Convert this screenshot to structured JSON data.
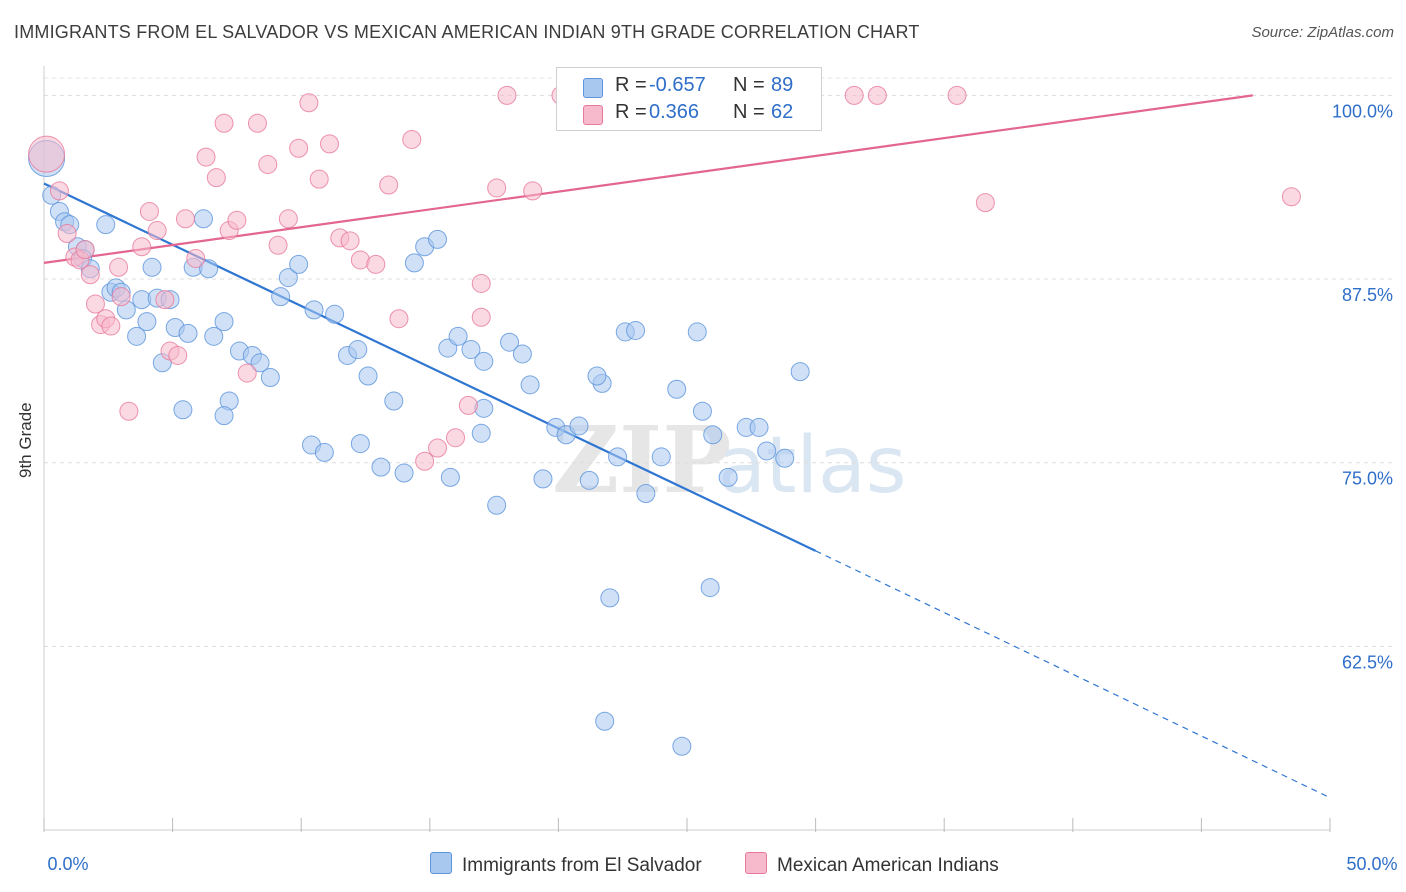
{
  "title": "IMMIGRANTS FROM EL SALVADOR VS MEXICAN AMERICAN INDIAN 9TH GRADE CORRELATION CHART",
  "source": "Source: ZipAtlas.com",
  "watermark": {
    "zip": "ZIP",
    "atlas": "atlas"
  },
  "legend": {
    "rows": [
      {
        "r_label": "R =",
        "r_value": "-0.657",
        "n_label": "N =",
        "n_value": "89",
        "color": "#a9c8f0"
      },
      {
        "r_label": "R =",
        "r_value": "0.366",
        "n_label": "N =",
        "n_value": "62",
        "color": "#f7b9cc"
      }
    ]
  },
  "bottom_legend": [
    {
      "label": "Immigrants from El Salvador",
      "color": "#a9c8f0"
    },
    {
      "label": "Mexican American Indians",
      "color": "#f7b9cc"
    }
  ],
  "chart_data": {
    "type": "scatter",
    "title": "IMMIGRANTS FROM EL SALVADOR VS MEXICAN AMERICAN INDIAN 9TH GRADE CORRELATION CHART",
    "xlabel": "",
    "ylabel": "9th Grade",
    "xlim": [
      0,
      50
    ],
    "ylim": [
      50,
      102
    ],
    "x_tick_labels": [
      "0.0%",
      "50.0%"
    ],
    "y_ticks": [
      62.5,
      75.0,
      87.5,
      100.0
    ],
    "y_tick_labels": [
      "62.5%",
      "75.0%",
      "87.5%",
      "100.0%"
    ],
    "grid": "horizontal dashed",
    "legend_position": "top-center",
    "series": [
      {
        "name": "Immigrants from El Salvador",
        "color": "#5b93dc",
        "fill": "#a9c8f0",
        "R": -0.657,
        "N": 89,
        "trend": {
          "x0": 0,
          "y0": 94.0,
          "x1": 30,
          "y1": 69.0,
          "dashed_to_x": 50,
          "dashed_to_y": 52.2
        },
        "points": [
          [
            0.1,
            95.7
          ],
          [
            0.3,
            93.2
          ],
          [
            0.6,
            92.1
          ],
          [
            0.8,
            91.4
          ],
          [
            1.0,
            91.2
          ],
          [
            1.3,
            89.7
          ],
          [
            1.6,
            89.5
          ],
          [
            1.5,
            88.9
          ],
          [
            1.8,
            88.2
          ],
          [
            2.4,
            91.2
          ],
          [
            2.6,
            86.6
          ],
          [
            2.8,
            86.9
          ],
          [
            3.0,
            86.6
          ],
          [
            3.2,
            85.4
          ],
          [
            3.6,
            83.6
          ],
          [
            3.8,
            86.1
          ],
          [
            4.0,
            84.6
          ],
          [
            4.2,
            88.3
          ],
          [
            4.4,
            86.2
          ],
          [
            4.6,
            81.8
          ],
          [
            4.9,
            86.1
          ],
          [
            5.1,
            84.2
          ],
          [
            5.6,
            83.8
          ],
          [
            5.8,
            88.3
          ],
          [
            6.2,
            91.6
          ],
          [
            6.4,
            88.2
          ],
          [
            6.6,
            83.6
          ],
          [
            7.0,
            84.6
          ],
          [
            7.2,
            79.2
          ],
          [
            7.6,
            82.6
          ],
          [
            8.1,
            82.3
          ],
          [
            8.4,
            81.8
          ],
          [
            8.8,
            80.8
          ],
          [
            9.2,
            86.3
          ],
          [
            9.5,
            87.6
          ],
          [
            9.9,
            88.5
          ],
          [
            10.4,
            76.2
          ],
          [
            10.9,
            75.7
          ],
          [
            11.3,
            85.1
          ],
          [
            11.8,
            82.3
          ],
          [
            12.2,
            82.7
          ],
          [
            12.6,
            80.9
          ],
          [
            13.1,
            74.7
          ],
          [
            13.6,
            79.2
          ],
          [
            14.0,
            74.3
          ],
          [
            14.4,
            88.6
          ],
          [
            14.8,
            89.7
          ],
          [
            15.3,
            90.2
          ],
          [
            15.7,
            82.8
          ],
          [
            16.1,
            83.6
          ],
          [
            16.6,
            82.7
          ],
          [
            17.1,
            78.7
          ],
          [
            17.6,
            72.1
          ],
          [
            18.1,
            83.2
          ],
          [
            18.6,
            82.4
          ],
          [
            18.9,
            80.3
          ],
          [
            19.4,
            73.9
          ],
          [
            19.9,
            77.4
          ],
          [
            20.3,
            76.9
          ],
          [
            20.8,
            77.5
          ],
          [
            21.2,
            73.8
          ],
          [
            21.7,
            80.4
          ],
          [
            22.3,
            75.4
          ],
          [
            22.6,
            83.9
          ],
          [
            23.0,
            84.0
          ],
          [
            23.4,
            72.9
          ],
          [
            24.0,
            75.4
          ],
          [
            24.6,
            80.0
          ],
          [
            25.4,
            83.9
          ],
          [
            26.0,
            76.9
          ],
          [
            26.6,
            74.0
          ],
          [
            27.3,
            77.4
          ],
          [
            27.8,
            77.4
          ],
          [
            28.1,
            75.8
          ],
          [
            28.8,
            75.3
          ],
          [
            29.4,
            81.2
          ],
          [
            17.0,
            77.0
          ],
          [
            15.8,
            74.0
          ],
          [
            12.3,
            76.3
          ],
          [
            10.5,
            85.4
          ],
          [
            7.0,
            78.2
          ],
          [
            5.4,
            78.6
          ],
          [
            22.0,
            65.8
          ],
          [
            25.9,
            66.5
          ],
          [
            21.8,
            57.4
          ],
          [
            24.8,
            55.7
          ],
          [
            17.1,
            81.9
          ],
          [
            21.5,
            80.9
          ],
          [
            25.6,
            78.5
          ]
        ]
      },
      {
        "name": "Mexican American Indians",
        "color": "#e7799b",
        "fill": "#f7b9cc",
        "R": 0.366,
        "N": 62,
        "trend": {
          "x0": 0,
          "y0": 88.6,
          "x1": 47,
          "y1": 100.0
        },
        "points": [
          [
            0.1,
            96.0
          ],
          [
            0.6,
            93.5
          ],
          [
            0.9,
            90.6
          ],
          [
            1.2,
            89.0
          ],
          [
            1.4,
            88.8
          ],
          [
            1.6,
            89.5
          ],
          [
            2.0,
            85.8
          ],
          [
            2.2,
            84.4
          ],
          [
            2.4,
            84.8
          ],
          [
            2.6,
            84.3
          ],
          [
            2.9,
            88.3
          ],
          [
            3.0,
            86.3
          ],
          [
            3.3,
            78.5
          ],
          [
            3.8,
            89.7
          ],
          [
            4.1,
            92.1
          ],
          [
            4.4,
            90.8
          ],
          [
            4.7,
            86.1
          ],
          [
            4.9,
            82.6
          ],
          [
            5.2,
            82.3
          ],
          [
            5.5,
            91.6
          ],
          [
            5.9,
            88.9
          ],
          [
            6.3,
            95.8
          ],
          [
            6.7,
            94.4
          ],
          [
            7.0,
            98.1
          ],
          [
            7.2,
            90.8
          ],
          [
            7.5,
            91.5
          ],
          [
            7.9,
            81.1
          ],
          [
            8.3,
            98.1
          ],
          [
            8.7,
            95.3
          ],
          [
            9.1,
            89.8
          ],
          [
            9.5,
            91.6
          ],
          [
            9.9,
            96.4
          ],
          [
            10.3,
            99.5
          ],
          [
            10.7,
            94.3
          ],
          [
            11.1,
            96.7
          ],
          [
            11.5,
            90.3
          ],
          [
            11.9,
            90.1
          ],
          [
            12.3,
            88.8
          ],
          [
            12.9,
            88.5
          ],
          [
            13.4,
            93.9
          ],
          [
            13.8,
            84.8
          ],
          [
            14.3,
            97.0
          ],
          [
            14.8,
            75.1
          ],
          [
            15.3,
            76.0
          ],
          [
            16.0,
            76.7
          ],
          [
            16.5,
            78.9
          ],
          [
            17.0,
            84.9
          ],
          [
            17.6,
            93.7
          ],
          [
            18.0,
            100.0
          ],
          [
            19.0,
            93.5
          ],
          [
            20.1,
            100.0
          ],
          [
            21.0,
            100.0
          ],
          [
            22.0,
            100.0
          ],
          [
            23.8,
            100.0
          ],
          [
            29.5,
            100.0
          ],
          [
            31.5,
            100.0
          ],
          [
            32.4,
            100.0
          ],
          [
            35.5,
            100.0
          ],
          [
            36.6,
            92.7
          ],
          [
            48.5,
            93.1
          ],
          [
            17.0,
            87.2
          ],
          [
            1.8,
            87.8
          ]
        ]
      }
    ]
  }
}
